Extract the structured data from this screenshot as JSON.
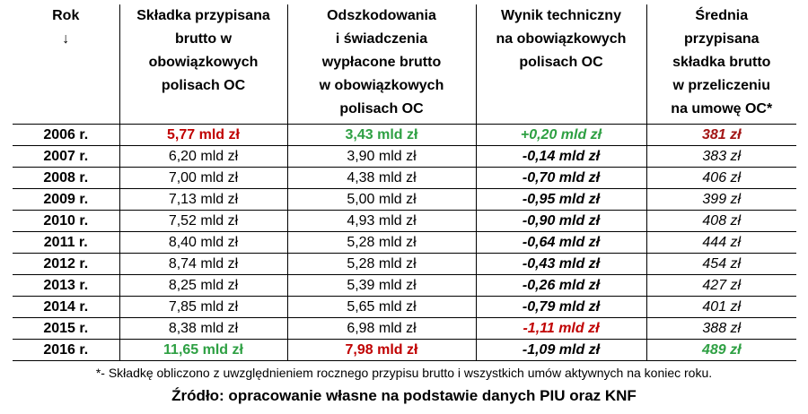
{
  "table": {
    "header": [
      "Rok\n↓",
      "Składka przypisana\nbrutto w\nobowiązkowych\npolisach OC",
      "Odszkodowania\ni świadczenia\nwypłacone brutto\nw obowiązkowych\npolisach OC",
      "Wynik techniczny\nna obowiązkowych\npolisach OC",
      "Średnia\nprzypisana\nskładka brutto\nw przeliczeniu\nna umowę OC*"
    ],
    "rows": [
      [
        "2006 r.",
        "5,77 mld zł",
        "3,43 mld zł",
        "+0,20 mld zł",
        "381 zł"
      ],
      [
        "2007 r.",
        "6,20 mld zł",
        "3,90 mld zł",
        "-0,14 mld zł",
        "383 zł"
      ],
      [
        "2008 r.",
        "7,00 mld zł",
        "4,38 mld zł",
        "-0,70 mld zł",
        "406 zł"
      ],
      [
        "2009 r.",
        "7,13 mld zł",
        "5,00 mld zł",
        "-0,95 mld zł",
        "399 zł"
      ],
      [
        "2010 r.",
        "7,52 mld zł",
        "4,93 mld zł",
        "-0,90 mld zł",
        "408 zł"
      ],
      [
        "2011 r.",
        "8,40 mld zł",
        "5,28 mld zł",
        "-0,64 mld zł",
        "444 zł"
      ],
      [
        "2012 r.",
        "8,74 mld zł",
        "5,28 mld zł",
        "-0,43 mld zł",
        "454 zł"
      ],
      [
        "2013 r.",
        "8,25 mld zł",
        "5,39 mld zł",
        "-0,26 mld zł",
        "427 zł"
      ],
      [
        "2014 r.",
        "7,85 mld zł",
        "5,65 mld zł",
        "-0,79 mld zł",
        "401 zł"
      ],
      [
        "2015 r.",
        "8,38 mld zł",
        "6,98 mld zł",
        "-1,11 mld zł",
        "388 zł"
      ],
      [
        "2016 r.",
        "11,65 mld zł",
        "7,98 mld zł",
        "-1,09 mld zł",
        "489 zł"
      ]
    ]
  },
  "footnote": "*- Składkę obliczono z uwzględnieniem rocznego przypisu brutto i wszystkich umów aktywnych na koniec roku.",
  "source": "Źródło: opracowanie własne na podstawie danych PIU oraz KNF"
}
